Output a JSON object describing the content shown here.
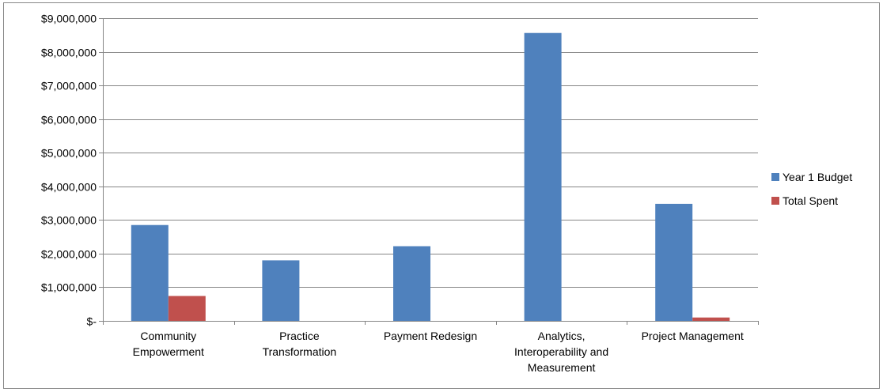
{
  "chart_data": {
    "type": "bar",
    "categories": [
      [
        "Community",
        "Empowerment"
      ],
      [
        "Practice",
        "Transformation"
      ],
      [
        "Payment Redesign"
      ],
      [
        "Analytics,",
        "Interoperability and",
        "Measurement"
      ],
      [
        "Project Management"
      ]
    ],
    "series": [
      {
        "name": "Year 1 Budget",
        "color": "#4F81BD",
        "values": [
          2850000,
          1800000,
          2220000,
          8560000,
          3480000
        ]
      },
      {
        "name": "Total Spent",
        "color": "#C0504D",
        "values": [
          740000,
          0,
          0,
          0,
          100000
        ]
      }
    ],
    "ylim": [
      0,
      9000000
    ],
    "yticks": [
      0,
      1000000,
      2000000,
      3000000,
      4000000,
      5000000,
      6000000,
      7000000,
      8000000,
      9000000
    ],
    "ytick_labels": [
      "$-",
      "$1,000,000",
      "$2,000,000",
      "$3,000,000",
      "$4,000,000",
      "$5,000,000",
      "$6,000,000",
      "$7,000,000",
      "$8,000,000",
      "$9,000,000"
    ],
    "grid": true,
    "legend": "right"
  }
}
